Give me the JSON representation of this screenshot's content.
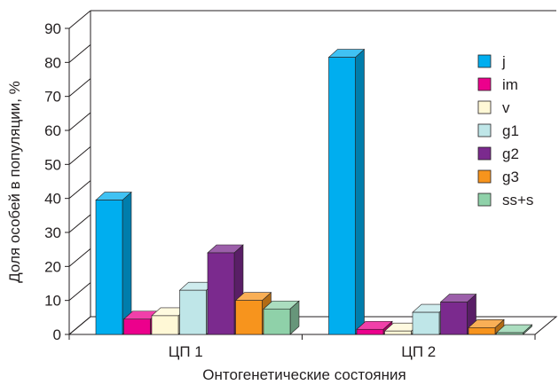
{
  "chart_data": {
    "type": "bar",
    "categories": [
      "ЦП 1",
      "ЦП 2"
    ],
    "series": [
      {
        "name": "j",
        "values": [
          39.5,
          81.5
        ],
        "color": "#00aeef"
      },
      {
        "name": "im",
        "values": [
          4.5,
          1.5
        ],
        "color": "#ec008c"
      },
      {
        "name": "v",
        "values": [
          5.5,
          1.0
        ],
        "color": "#fff8d6"
      },
      {
        "name": "g1",
        "values": [
          13.0,
          6.5
        ],
        "color": "#bfe6e8"
      },
      {
        "name": "g2",
        "values": [
          24.0,
          9.5
        ],
        "color": "#7b2a8e"
      },
      {
        "name": "g3",
        "values": [
          10.0,
          2.0
        ],
        "color": "#f7941d"
      },
      {
        "name": "ss+s",
        "values": [
          7.5,
          0.5
        ],
        "color": "#8fd1a9"
      }
    ],
    "xlabel": "Онтогенетические состояния",
    "ylabel": "Доля особей в популяции, %",
    "ylim": [
      0,
      90
    ],
    "yticks": [
      0,
      10,
      20,
      30,
      40,
      50,
      60,
      70,
      80,
      90
    ],
    "grid": false,
    "legend": "right"
  }
}
